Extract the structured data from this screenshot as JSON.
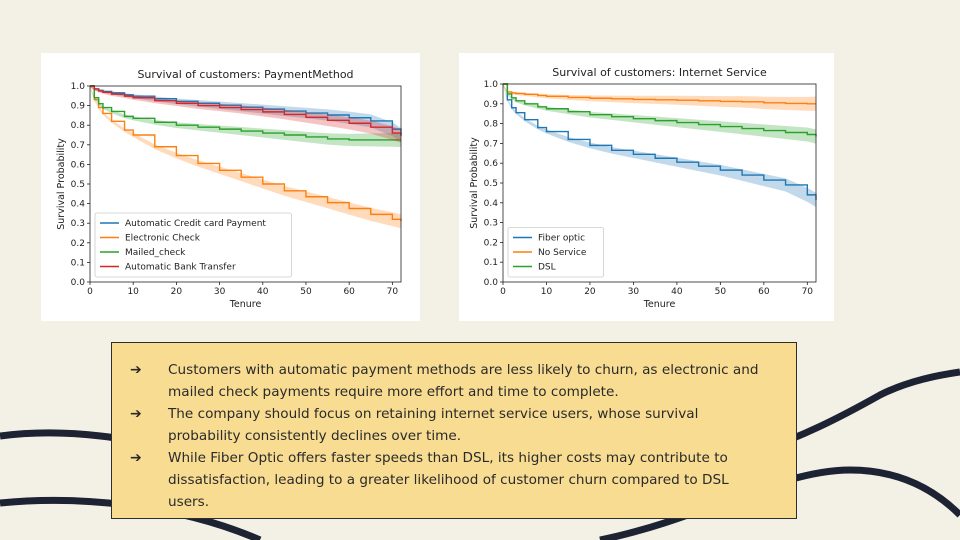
{
  "chart_data": [
    {
      "type": "line",
      "title": "Survival of customers: PaymentMethod",
      "xlabel": "Tenure",
      "ylabel": "Survival Probability",
      "xlim": [
        0,
        72
      ],
      "ylim": [
        0,
        1.0
      ],
      "xticks": [
        "0",
        "10",
        "20",
        "30",
        "40",
        "50",
        "60",
        "70"
      ],
      "yticks": [
        "0.0",
        "0.1",
        "0.2",
        "0.3",
        "0.4",
        "0.5",
        "0.6",
        "0.7",
        "0.8",
        "0.9",
        "1.0"
      ],
      "legend_position": "lower-left",
      "x": [
        0,
        1,
        2,
        3,
        5,
        8,
        10,
        15,
        20,
        25,
        30,
        35,
        40,
        45,
        50,
        55,
        60,
        65,
        70,
        72
      ],
      "series": [
        {
          "name": "Automatic Credit card Payment",
          "color": "#1f77b4",
          "values": [
            1.0,
            0.985,
            0.978,
            0.972,
            0.965,
            0.955,
            0.948,
            0.935,
            0.922,
            0.912,
            0.902,
            0.892,
            0.882,
            0.872,
            0.862,
            0.852,
            0.838,
            0.822,
            0.78,
            0.75
          ]
        },
        {
          "name": "Electronic Check",
          "color": "#ff7f0e",
          "values": [
            1.0,
            0.93,
            0.89,
            0.86,
            0.82,
            0.775,
            0.75,
            0.69,
            0.645,
            0.605,
            0.57,
            0.535,
            0.5,
            0.465,
            0.435,
            0.405,
            0.375,
            0.345,
            0.32,
            0.31
          ]
        },
        {
          "name": "Mailed_check",
          "color": "#2ca02c",
          "values": [
            1.0,
            0.94,
            0.91,
            0.89,
            0.87,
            0.845,
            0.835,
            0.815,
            0.8,
            0.79,
            0.78,
            0.77,
            0.76,
            0.75,
            0.74,
            0.73,
            0.725,
            0.725,
            0.725,
            0.725
          ]
        },
        {
          "name": "Automatic Bank Transfer",
          "color": "#d62728",
          "values": [
            1.0,
            0.985,
            0.975,
            0.968,
            0.958,
            0.948,
            0.94,
            0.925,
            0.912,
            0.9,
            0.89,
            0.88,
            0.868,
            0.855,
            0.84,
            0.825,
            0.81,
            0.79,
            0.76,
            0.745
          ]
        }
      ]
    },
    {
      "type": "line",
      "title": "Survival of customers: Internet Service",
      "xlabel": "Tenure",
      "ylabel": "Survival Probability",
      "xlim": [
        0,
        72
      ],
      "ylim": [
        0,
        1.0
      ],
      "xticks": [
        "0",
        "10",
        "20",
        "30",
        "40",
        "50",
        "60",
        "70"
      ],
      "yticks": [
        "0.0",
        "0.1",
        "0.2",
        "0.3",
        "0.4",
        "0.5",
        "0.6",
        "0.7",
        "0.8",
        "0.9",
        "1.0"
      ],
      "legend_position": "lower-left",
      "x": [
        0,
        1,
        2,
        3,
        5,
        8,
        10,
        15,
        20,
        25,
        30,
        35,
        40,
        45,
        50,
        55,
        60,
        65,
        70,
        72
      ],
      "series": [
        {
          "name": "Fiber optic",
          "color": "#1f77b4",
          "values": [
            1.0,
            0.92,
            0.88,
            0.855,
            0.82,
            0.78,
            0.76,
            0.72,
            0.69,
            0.665,
            0.645,
            0.625,
            0.605,
            0.585,
            0.565,
            0.54,
            0.515,
            0.49,
            0.44,
            0.415
          ]
        },
        {
          "name": "No Service",
          "color": "#ff7f0e",
          "values": [
            1.0,
            0.96,
            0.955,
            0.952,
            0.948,
            0.942,
            0.938,
            0.932,
            0.928,
            0.925,
            0.922,
            0.92,
            0.918,
            0.915,
            0.912,
            0.91,
            0.905,
            0.902,
            0.9,
            0.9
          ]
        },
        {
          "name": "DSL",
          "color": "#2ca02c",
          "values": [
            1.0,
            0.95,
            0.93,
            0.915,
            0.9,
            0.885,
            0.875,
            0.86,
            0.845,
            0.835,
            0.825,
            0.815,
            0.805,
            0.795,
            0.785,
            0.775,
            0.765,
            0.755,
            0.745,
            0.735
          ]
        }
      ]
    }
  ],
  "insights": [
    {
      "arrow": "➔",
      "text": "Customers with automatic payment methods are less likely to churn, as electronic and mailed check payments require more effort and time to complete."
    },
    {
      "arrow": "➔",
      "text": "The company should focus on retaining internet service users, whose survival probability consistently declines over time."
    },
    {
      "arrow": "➔",
      "text": "While Fiber Optic offers faster speeds than DSL, its higher costs may contribute to dissatisfaction, leading to a greater likelihood of customer churn compared to DSL users."
    }
  ],
  "decor": {
    "wave_color": "#1d2333"
  }
}
